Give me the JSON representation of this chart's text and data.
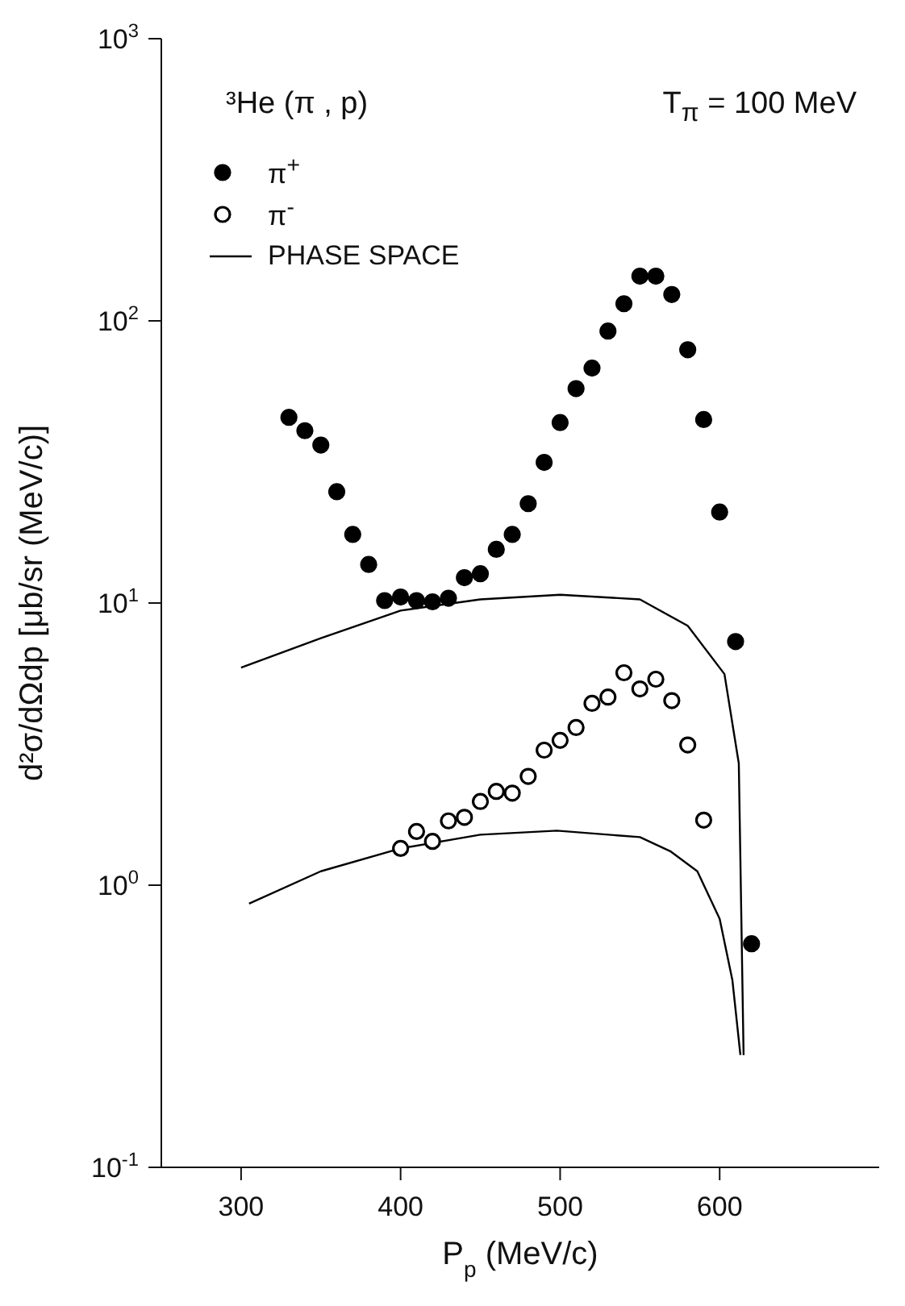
{
  "chart_data": {
    "type": "scatter",
    "xlabel": "P$_{p}$ (MeV/c)",
    "ylabel": "d²σ/dΩdp [μb/sr (MeV/c)]",
    "annotations": [
      "³He (π , p)",
      "T$_{π}$ = 100 MeV"
    ],
    "xlim": [
      250,
      700
    ],
    "xticks": [
      300,
      400,
      500,
      600
    ],
    "ylim": [
      0.1,
      1000
    ],
    "yticks": [
      {
        "value": 0.1,
        "label": "10$^{-1}$"
      },
      {
        "value": 1,
        "label": "10$^{0}$"
      },
      {
        "value": 10,
        "label": "10$^{1}$"
      },
      {
        "value": 100,
        "label": "10$^{2}$"
      },
      {
        "value": 1000,
        "label": "10$^{3}$"
      }
    ],
    "log": "y",
    "grid": false,
    "legend": "top left",
    "marker": "circle",
    "series": [
      {
        "name": "π$^{+}$",
        "color": "#000000",
        "x": [
          330,
          340,
          350,
          360,
          370,
          380,
          390,
          400,
          410,
          420,
          430,
          440,
          450,
          460,
          470,
          480,
          490,
          500,
          510,
          520,
          530,
          540,
          550,
          560,
          570,
          580,
          590,
          600,
          610,
          620
        ],
        "values": [
          45.5,
          40.8,
          36.3,
          24.8,
          17.5,
          13.7,
          10.2,
          10.5,
          10.2,
          10.1,
          10.4,
          12.3,
          12.7,
          15.5,
          17.5,
          22.5,
          31.5,
          43.6,
          57.5,
          68,
          92,
          115,
          144,
          144,
          124,
          79,
          44.7,
          21,
          7.3,
          0.62
        ]
      },
      {
        "name": "π$^{-}$",
        "color": "#ffffff",
        "x": [
          400,
          410,
          420,
          430,
          440,
          450,
          460,
          470,
          480,
          490,
          500,
          510,
          520,
          530,
          540,
          550,
          560,
          570,
          580,
          590
        ],
        "values": [
          1.35,
          1.55,
          1.43,
          1.69,
          1.74,
          1.98,
          2.15,
          2.12,
          2.43,
          3.01,
          3.26,
          3.62,
          4.41,
          4.64,
          5.66,
          4.96,
          5.37,
          4.51,
          3.14,
          1.7
        ]
      },
      {
        "name": "PHASE SPACE",
        "type": "line",
        "color": "#000000",
        "marker": "none",
        "x": [
          300,
          350,
          400,
          450,
          500,
          550,
          580,
          603,
          612,
          615
        ],
        "values": [
          5.9,
          7.5,
          9.4,
          10.3,
          10.7,
          10.3,
          8.3,
          5.6,
          2.7,
          0.25
        ]
      },
      {
        "type": "line",
        "color": "#000000",
        "marker": "none",
        "x": [
          305,
          350,
          400,
          450,
          498,
          550,
          569,
          586,
          600,
          608,
          613
        ],
        "values": [
          0.86,
          1.12,
          1.35,
          1.51,
          1.56,
          1.48,
          1.32,
          1.12,
          0.76,
          0.46,
          0.25
        ]
      }
    ]
  }
}
